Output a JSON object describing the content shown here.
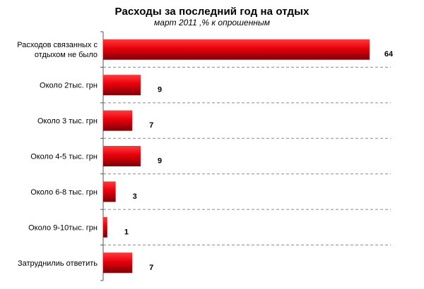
{
  "chart_data": {
    "type": "bar",
    "orientation": "horizontal",
    "title": "Расходы за последний год на отдых",
    "subtitle": "март 2011 ,% к опрошенным",
    "categories": [
      [
        "Расходов связанных с",
        "отдыхом не было"
      ],
      [
        "Около 2тыс. грн"
      ],
      [
        "Около 3 тыс. грн"
      ],
      [
        "Около 4-5 тыс. грн"
      ],
      [
        "Около 6-8 тыс. грн"
      ],
      [
        "Около 9-10тыс. грн"
      ],
      [
        "Затруднилиь ответить"
      ]
    ],
    "values": [
      64,
      9,
      7,
      9,
      3,
      1,
      7
    ],
    "xlim": [
      0,
      64
    ],
    "grid": "dashed-horizontal",
    "legend": "none",
    "bar_color": "#e8000b"
  }
}
